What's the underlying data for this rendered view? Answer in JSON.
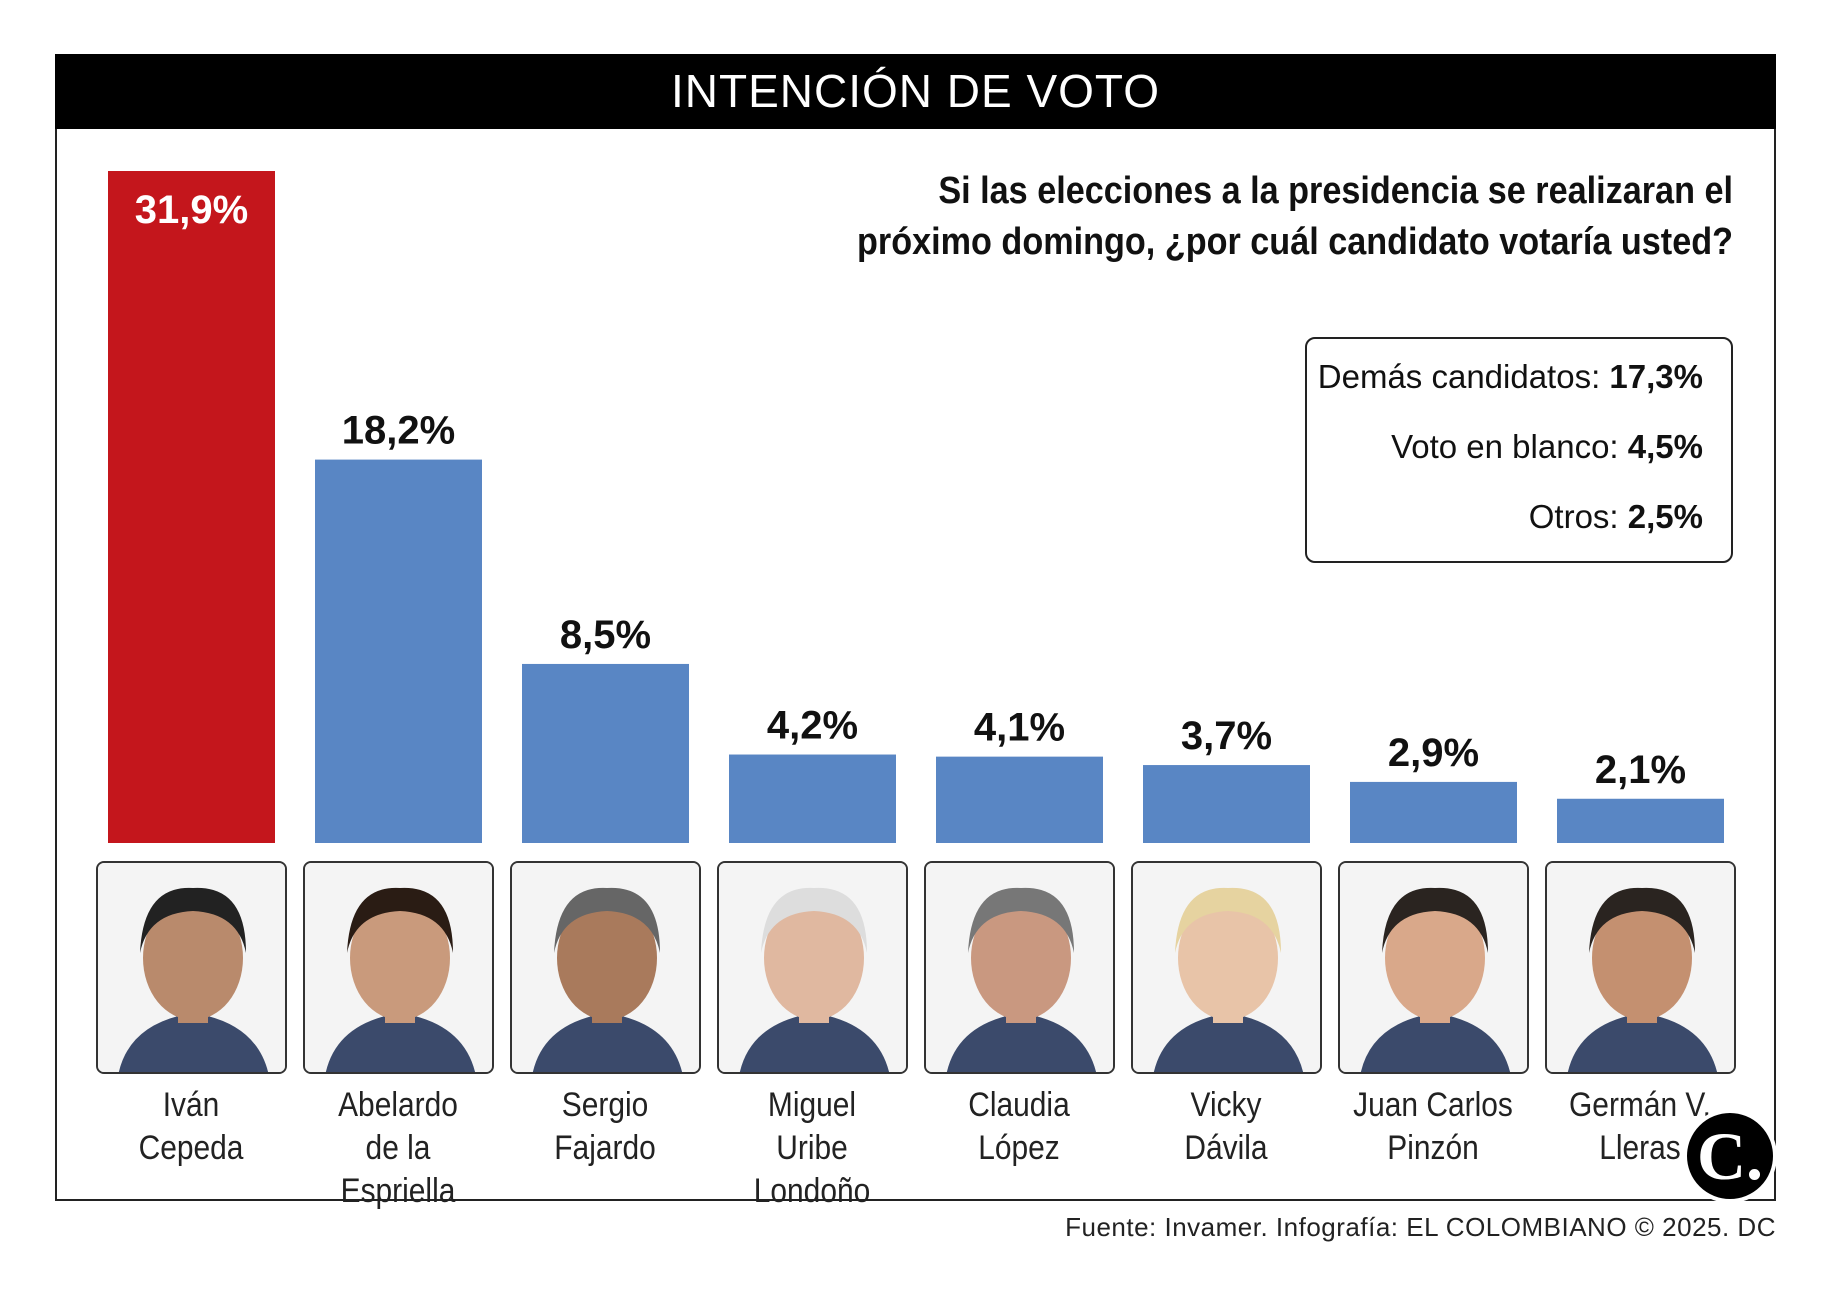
{
  "title": "INTENCIÓN DE VOTO",
  "question": {
    "line1": "Si las elecciones a la presidencia se realizaran el",
    "line2": "próximo domingo, ¿por cuál candidato votaría usted?"
  },
  "others_box": [
    {
      "label": "Demás candidatos:",
      "value": "17,3%"
    },
    {
      "label": "Voto en blanco:",
      "value": "4,5%"
    },
    {
      "label": "Otros:",
      "value": "2,5%"
    }
  ],
  "footer": "Fuente: Invamer. Infografía: EL COLOMBIANO © 2025. DC",
  "logo": "C.",
  "colors": {
    "highlight": "#c4161c",
    "bar": "#5986c4"
  },
  "chart_data": {
    "type": "bar",
    "categories": [
      "Iván Cepeda",
      "Abelardo de la Espriella",
      "Sergio Fajardo",
      "Miguel Uribe Londoño",
      "Claudia López",
      "Vicky Dávila",
      "Juan Carlos Pinzón",
      "Germán V. Lleras"
    ],
    "name_lines": [
      [
        "Iván",
        "Cepeda"
      ],
      [
        "Abelardo",
        "de la Espriella"
      ],
      [
        "Sergio",
        "Fajardo"
      ],
      [
        "Miguel",
        "Uribe Londoño"
      ],
      [
        "Claudia",
        "López"
      ],
      [
        "Vicky",
        "Dávila"
      ],
      [
        "Juan Carlos",
        "Pinzón"
      ],
      [
        "Germán V.",
        "Lleras"
      ]
    ],
    "values": [
      31.9,
      18.2,
      8.5,
      4.2,
      4.1,
      3.7,
      2.9,
      2.1
    ],
    "labels": [
      "31,9%",
      "18,2%",
      "8,5%",
      "4,2%",
      "4,1%",
      "3,7%",
      "2,9%",
      "2,1%"
    ],
    "unit": "%",
    "grid": false,
    "highlight_index": 0
  }
}
